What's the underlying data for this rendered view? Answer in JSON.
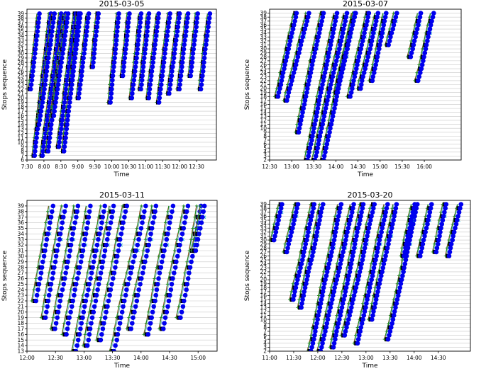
{
  "colors": {
    "blue_marker": "#0000ee",
    "black_marker": "#000000",
    "green_line": "#228b22",
    "brown_line": "#a0522d",
    "thin_line": "#3f8fbf",
    "cyan_x": "#17becf",
    "grid": "#c8c8c8"
  },
  "chart_data": [
    {
      "type": "line",
      "title": "2015-03-05",
      "xlabel": "Time",
      "ylabel": "Stops sequence",
      "xlim": [
        450,
        785
      ],
      "ylim": [
        6,
        40
      ],
      "xticks": [
        450,
        480,
        510,
        540,
        570,
        600,
        630,
        660,
        690,
        720,
        750
      ],
      "xticklabels": [
        "7:30",
        "8:00",
        "8:30",
        "9:00",
        "9:30",
        "10:00",
        "10:30",
        "11:00",
        "11:30",
        "12:00",
        "12:30"
      ],
      "ytick_start": 6,
      "ytick_end": 39,
      "trips": [
        {
          "start": 455,
          "stop": 22,
          "duration": 16
        },
        {
          "start": 462,
          "stop": 7,
          "duration": 30
        },
        {
          "start": 470,
          "stop": 14,
          "duration": 26
        },
        {
          "start": 476,
          "stop": 7,
          "duration": 34
        },
        {
          "start": 486,
          "stop": 8,
          "duration": 32
        },
        {
          "start": 496,
          "stop": 16,
          "duration": 24
        },
        {
          "start": 505,
          "stop": 9,
          "duration": 30
        },
        {
          "start": 514,
          "stop": 8,
          "duration": 30
        },
        {
          "start": 528,
          "stop": 24,
          "duration": 12
        },
        {
          "start": 540,
          "stop": 20,
          "duration": 18
        },
        {
          "start": 565,
          "stop": 27,
          "duration": 10
        },
        {
          "start": 596,
          "stop": 19,
          "duration": 16
        },
        {
          "start": 618,
          "stop": 25,
          "duration": 12
        },
        {
          "start": 634,
          "stop": 20,
          "duration": 16
        },
        {
          "start": 650,
          "stop": 22,
          "duration": 16
        },
        {
          "start": 664,
          "stop": 20,
          "duration": 18
        },
        {
          "start": 682,
          "stop": 19,
          "duration": 20
        },
        {
          "start": 700,
          "stop": 21,
          "duration": 18
        },
        {
          "start": 718,
          "stop": 22,
          "duration": 16
        },
        {
          "start": 738,
          "stop": 25,
          "duration": 12
        },
        {
          "start": 756,
          "stop": 22,
          "duration": 16
        }
      ]
    },
    {
      "type": "line",
      "title": "2015-03-07",
      "xlabel": "Time",
      "ylabel": "Stops sequence",
      "xlim": [
        750,
        1010
      ],
      "ylim": [
        2,
        40
      ],
      "xticks": [
        750,
        780,
        810,
        840,
        870,
        900,
        930,
        960
      ],
      "xticklabels": [
        "12:30",
        "13:00",
        "13:30",
        "14:00",
        "14:30",
        "15:00",
        "15:30",
        "16:00"
      ],
      "ytick_start": 2,
      "ytick_end": 39,
      "trips": [
        {
          "start": 760,
          "stop": 18,
          "duration": 26
        },
        {
          "start": 772,
          "stop": 17,
          "duration": 30
        },
        {
          "start": 788,
          "stop": 9,
          "duration": 34
        },
        {
          "start": 800,
          "stop": 2,
          "duration": 40
        },
        {
          "start": 810,
          "stop": 2,
          "duration": 44
        },
        {
          "start": 822,
          "stop": 2,
          "duration": 42
        },
        {
          "start": 840,
          "stop": 19,
          "duration": 24
        },
        {
          "start": 858,
          "stop": 18,
          "duration": 26
        },
        {
          "start": 872,
          "stop": 20,
          "duration": 24
        },
        {
          "start": 888,
          "stop": 22,
          "duration": 20
        },
        {
          "start": 910,
          "stop": 31,
          "duration": 12
        },
        {
          "start": 940,
          "stop": 28,
          "duration": 14
        },
        {
          "start": 950,
          "stop": 22,
          "duration": 22
        }
      ]
    },
    {
      "type": "line",
      "title": "2015-03-11",
      "xlabel": "Time",
      "ylabel": "Stops sequence",
      "xlim": [
        720,
        920
      ],
      "ylim": [
        13,
        40
      ],
      "xticks": [
        720,
        750,
        780,
        810,
        840,
        870,
        900
      ],
      "xticklabels": [
        "12:00",
        "12:30",
        "13:00",
        "13:30",
        "14:00",
        "14:30",
        "15:00"
      ],
      "ytick_start": 13,
      "ytick_end": 39,
      "trips": [
        {
          "start": 728,
          "stop": 22,
          "duration": 18
        },
        {
          "start": 738,
          "stop": 19,
          "duration": 22
        },
        {
          "start": 748,
          "stop": 17,
          "duration": 24
        },
        {
          "start": 760,
          "stop": 16,
          "duration": 26
        },
        {
          "start": 770,
          "stop": 13,
          "duration": 30
        },
        {
          "start": 782,
          "stop": 14,
          "duration": 28
        },
        {
          "start": 796,
          "stop": 15,
          "duration": 28
        },
        {
          "start": 810,
          "stop": 13,
          "duration": 32
        },
        {
          "start": 828,
          "stop": 17,
          "duration": 26
        },
        {
          "start": 846,
          "stop": 16,
          "duration": 26
        },
        {
          "start": 862,
          "stop": 17,
          "duration": 26
        },
        {
          "start": 880,
          "stop": 19,
          "duration": 22
        },
        {
          "start": 896,
          "stop": 31,
          "duration": 10
        }
      ]
    },
    {
      "type": "line",
      "title": "2015-03-20",
      "xlabel": "Time",
      "ylabel": "Stops sequence",
      "xlim": [
        660,
        910
      ],
      "ylim": [
        2,
        40
      ],
      "xticks": [
        660,
        690,
        720,
        750,
        780,
        810,
        840,
        870
      ],
      "xticklabels": [
        "11:00",
        "11:30",
        "12:00",
        "12:30",
        "13:00",
        "13:30",
        "14:00",
        "14:30"
      ],
      "ytick_start": 2,
      "ytick_end": 39,
      "trips": [
        {
          "start": 664,
          "stop": 30,
          "duration": 10
        },
        {
          "start": 680,
          "stop": 27,
          "duration": 14
        },
        {
          "start": 688,
          "stop": 15,
          "duration": 26
        },
        {
          "start": 698,
          "stop": 13,
          "duration": 28
        },
        {
          "start": 710,
          "stop": 2,
          "duration": 38
        },
        {
          "start": 722,
          "stop": 2,
          "duration": 40
        },
        {
          "start": 738,
          "stop": 3,
          "duration": 38
        },
        {
          "start": 752,
          "stop": 6,
          "duration": 36
        },
        {
          "start": 768,
          "stop": 4,
          "duration": 38
        },
        {
          "start": 786,
          "stop": 10,
          "duration": 30
        },
        {
          "start": 806,
          "stop": 5,
          "duration": 36
        },
        {
          "start": 826,
          "stop": 26,
          "duration": 14
        },
        {
          "start": 846,
          "stop": 26,
          "duration": 14
        },
        {
          "start": 866,
          "stop": 27,
          "duration": 12
        },
        {
          "start": 882,
          "stop": 26,
          "duration": 14
        }
      ]
    }
  ]
}
